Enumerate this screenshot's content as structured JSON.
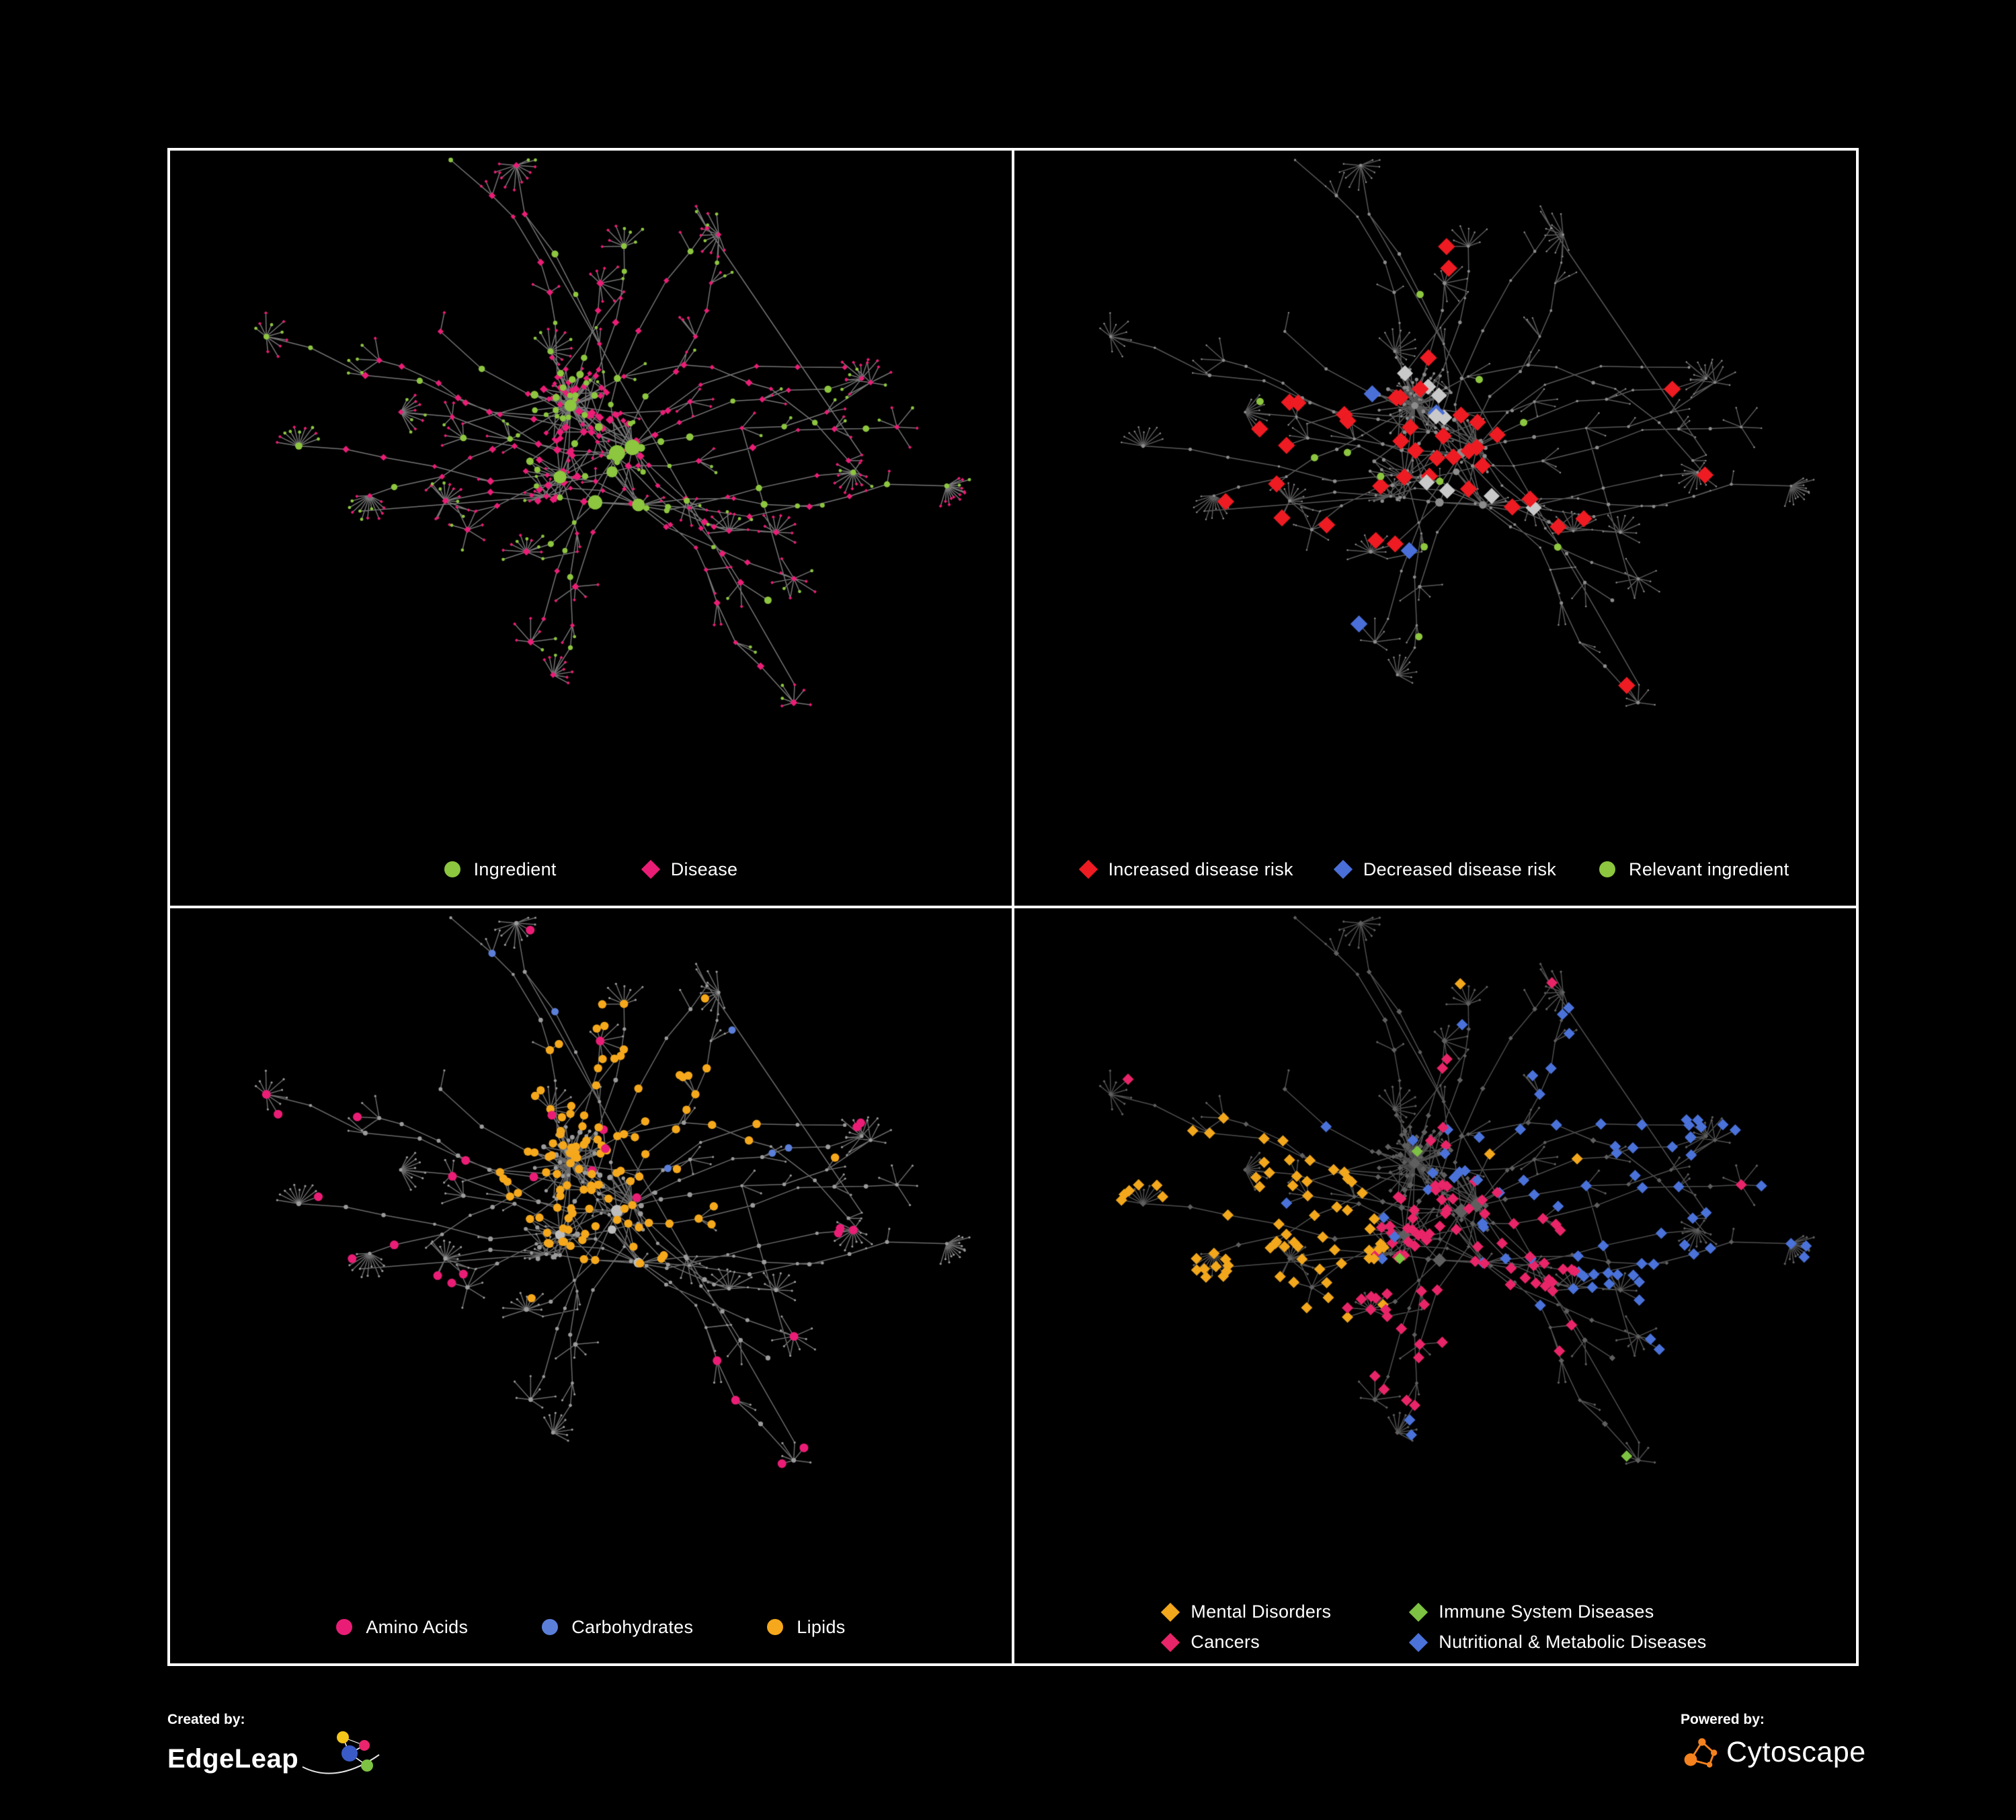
{
  "figure": {
    "background": "#000000",
    "panel_border": "#ffffff"
  },
  "layout": {
    "seed": 7,
    "hubs": 7,
    "blobs": 4,
    "branches": 36
  },
  "panels": [
    {
      "name": "ingredient-disease-network",
      "legend": [
        {
          "shape": "circle",
          "color": "#8dc63f",
          "label": "Ingredient"
        },
        {
          "shape": "diamond",
          "color": "#ea1d76",
          "label": "Disease"
        }
      ],
      "network": {
        "edge_color": "#8a8a8a",
        "base": {
          "color": "#ea1d76",
          "shape": "diamond",
          "scale": 0.9
        },
        "hub": {
          "color": "#8dc63f",
          "shape": "circle",
          "scale": 1.05
        },
        "highlights": [
          {
            "name": "ingredient",
            "color": "#8dc63f",
            "shape": "circle",
            "p_out": 0.3
          }
        ]
      }
    },
    {
      "name": "disease-risk-network",
      "legend": [
        {
          "shape": "diamond",
          "color": "#ee1b22",
          "label": "Increased disease risk"
        },
        {
          "shape": "diamond",
          "color": "#4a6fd9",
          "label": "Decreased disease risk"
        },
        {
          "shape": "circle",
          "color": "#8dc63f",
          "label": "Relevant ingredient"
        }
      ],
      "network": {
        "edge_color": "#696969",
        "base": {
          "color": "#8c8c8c",
          "shape": "circle",
          "scale": 0.62
        },
        "highlights": [
          {
            "name": "increased",
            "color": "#ee1b22",
            "shape": "diamond",
            "size": 9,
            "cluster": [
              0.46,
              0.42,
              300
            ],
            "p_in": 0.085,
            "p_out": 0.012
          },
          {
            "name": "decreased",
            "color": "#4a6fd9",
            "shape": "diamond",
            "size": 9,
            "cluster": [
              0.42,
              0.45,
              260
            ],
            "p_in": 0.02,
            "p_out": 0.006
          },
          {
            "name": "ingredient",
            "color": "#8dc63f",
            "shape": "circle",
            "size": 5.5,
            "cluster": [
              0.45,
              0.42,
              320
            ],
            "p_in": 0.05,
            "p_out": 0.004
          },
          {
            "name": "uncertain",
            "color": "#c9c9c9",
            "shape": "diamond",
            "size": 8.5,
            "cluster": [
              0.46,
              0.45,
              280
            ],
            "p_in": 0.022,
            "p_out": 0.002
          }
        ]
      }
    },
    {
      "name": "macronutrient-network",
      "legend": [
        {
          "shape": "circle",
          "color": "#ea1d76",
          "label": "Amino Acids"
        },
        {
          "shape": "circle",
          "color": "#5b7fd9",
          "label": "Carbohydrates"
        },
        {
          "shape": "circle",
          "color": "#f5a81c",
          "label": "Lipids"
        }
      ],
      "network": {
        "edge_color": "#7d7d7d",
        "base": {
          "color": "#9b9b9b",
          "shape": "circle",
          "scale": 0.8,
          "hub_color": "#bdbdbd"
        },
        "highlights": [
          {
            "name": "lipids",
            "color": "#f5a81c",
            "shape": "circle",
            "size": 6.2,
            "cluster": [
              0.54,
              0.33,
              200
            ],
            "p_in": 0.45,
            "p_out": 0.015
          },
          {
            "name": "amino",
            "color": "#ea1d76",
            "shape": "circle",
            "size": 6.5,
            "p_out": 0.042
          },
          {
            "name": "carbs",
            "color": "#5b7fd9",
            "shape": "circle",
            "size": 5.5,
            "cluster": [
              0.5,
              0.42,
              170
            ],
            "p_in": 0.05,
            "p_out": 0.01
          }
        ]
      }
    },
    {
      "name": "disease-class-network",
      "legend": [
        {
          "shape": "diamond",
          "color": "#f2a71c",
          "label": "Mental Disorders"
        },
        {
          "shape": "diamond",
          "color": "#7dc242",
          "label": "Immune System Diseases"
        },
        {
          "shape": "diamond",
          "color": "#e82568",
          "label": "Cancers"
        },
        {
          "shape": "diamond",
          "color": "#4a72d9",
          "label": "Nutritional & Metabolic Diseases"
        }
      ],
      "network": {
        "edge_color": "#5c5c5c",
        "base": {
          "color": "#5f5f5f",
          "shape": "diamond",
          "scale": 0.72
        },
        "highlights": [
          {
            "name": "mental",
            "color": "#f2a71c",
            "shape": "diamond",
            "size": 6,
            "cluster": [
              0.27,
              0.52,
              220
            ],
            "p_in": 0.6,
            "p_out": 0.008
          },
          {
            "name": "cancers",
            "color": "#e82568",
            "shape": "diamond",
            "size": 6,
            "cluster": [
              0.53,
              0.57,
              180
            ],
            "p_in": 0.5,
            "p_out": 0.012
          },
          {
            "name": "nutritional",
            "color": "#4a72d9",
            "shape": "diamond",
            "size": 6,
            "cluster": [
              0.72,
              0.35,
              260
            ],
            "p_in": 0.38,
            "p_out": 0.05
          },
          {
            "name": "immune",
            "color": "#7dc242",
            "shape": "diamond",
            "size": 6,
            "p_out": 0.018
          }
        ]
      }
    }
  ],
  "footer": {
    "created_by": {
      "caption": "Created by:",
      "brand": "EdgeLeap"
    },
    "powered_by": {
      "caption": "Powered by:",
      "brand": "Cytoscape",
      "accent": "#f5821f"
    }
  }
}
